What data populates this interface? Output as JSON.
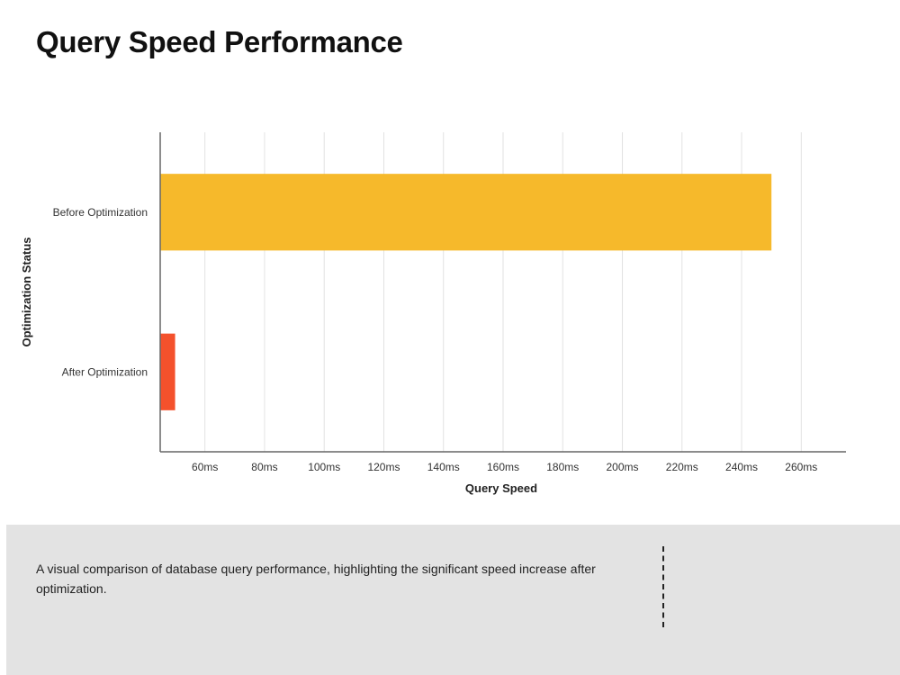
{
  "title": "Query Speed Performance",
  "chart_data": {
    "type": "bar",
    "orientation": "horizontal",
    "title": "Query Speed Performance",
    "xlabel": "Query Speed",
    "ylabel": "Optimization Status",
    "categories": [
      "Before Optimization",
      "After Optimization"
    ],
    "values": [
      250,
      50
    ],
    "colors": [
      "#f6b92b",
      "#f4512c"
    ],
    "xlim": [
      45,
      275
    ],
    "xticks": [
      60,
      80,
      100,
      120,
      140,
      160,
      180,
      200,
      220,
      240,
      260
    ],
    "xtick_labels": [
      "60ms",
      "80ms",
      "100ms",
      "120ms",
      "140ms",
      "160ms",
      "180ms",
      "200ms",
      "220ms",
      "240ms",
      "260ms"
    ],
    "grid": true,
    "legend": "none"
  },
  "footer": {
    "description": "A visual comparison of database query performance, highlighting the significant speed increase after optimization."
  }
}
